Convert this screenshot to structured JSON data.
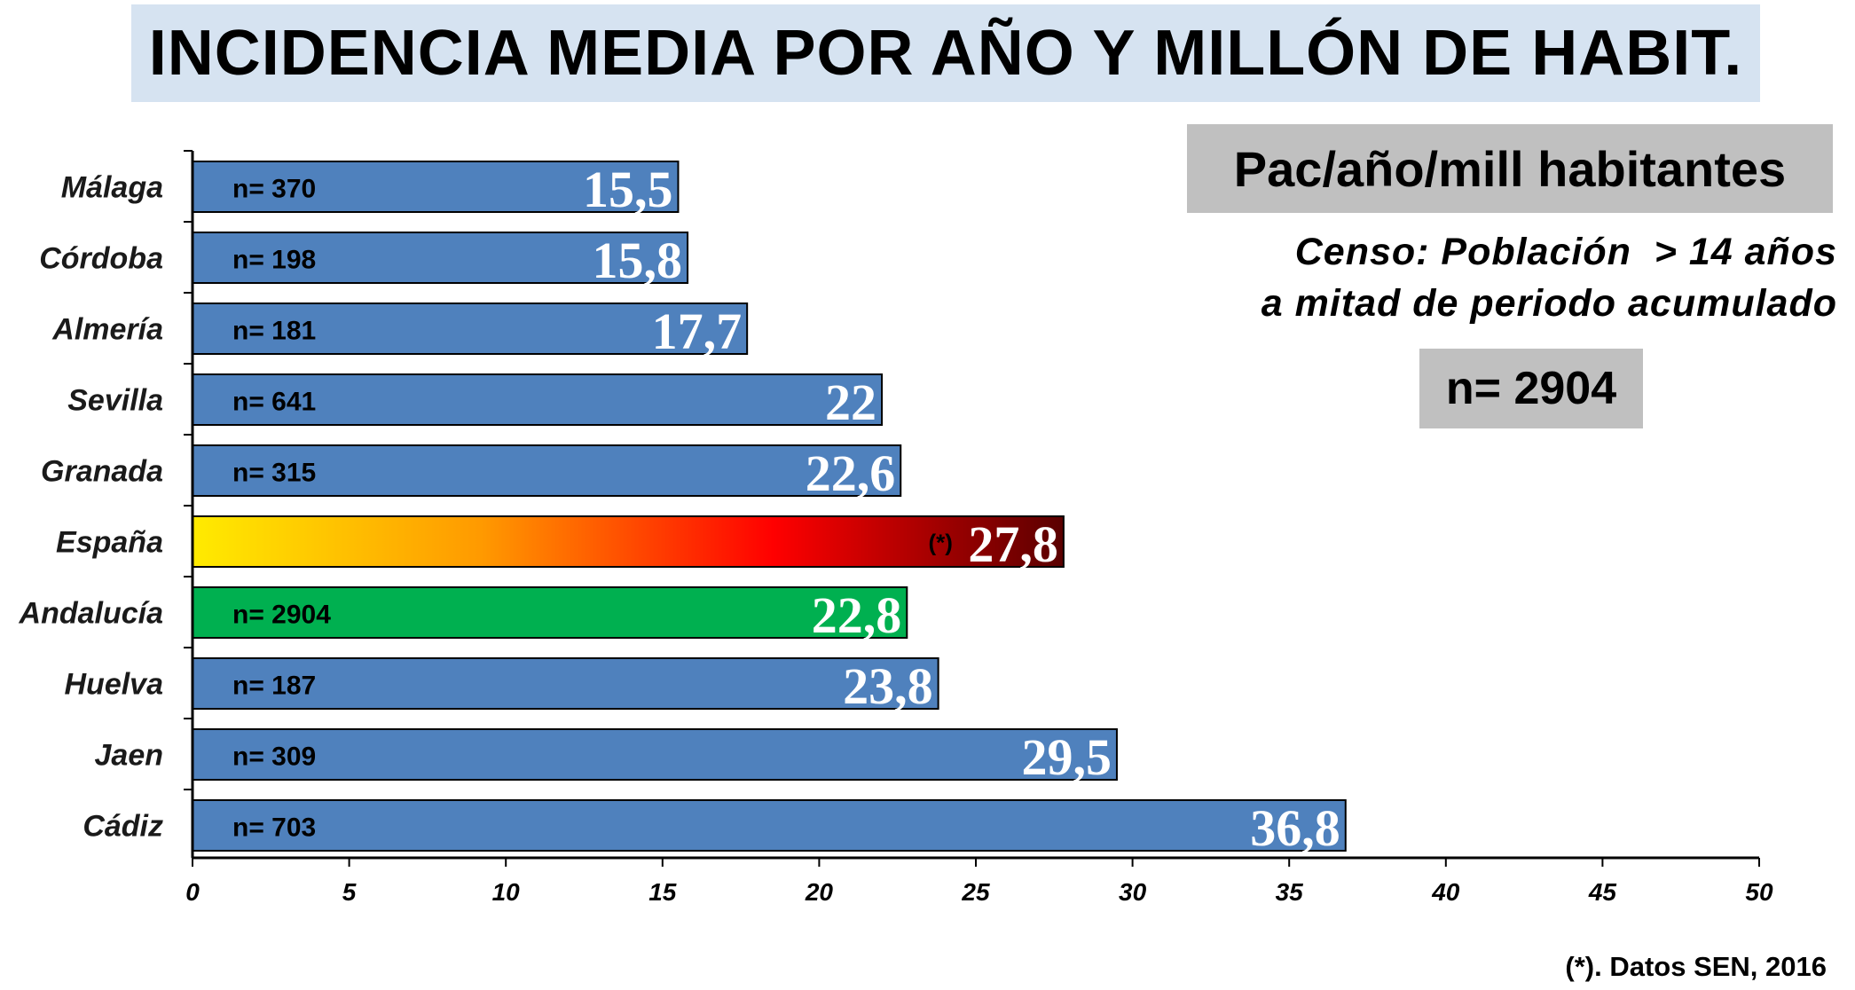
{
  "title": "INCIDENCIA MEDIA POR AÑO Y MILLÓN DE HABIT.",
  "units_box": "Pac/año/mill habitantes",
  "census": {
    "line1": "Censo: Población  > 14 años",
    "line2": "a mitad de periodo acumulado"
  },
  "total_n": "n= 2904",
  "source_note": "(*). Datos SEN, 2016",
  "colors": {
    "bar_default": "#4f81bd",
    "bar_andalucia": "#00b050",
    "bar_espana_gradient": [
      "#ffeb00",
      "#ff9900",
      "#ff0000",
      "#5a0000"
    ]
  },
  "chart_data": {
    "type": "bar",
    "orientation": "horizontal",
    "xlim": [
      0,
      50
    ],
    "xticks": [
      0,
      5,
      10,
      15,
      20,
      25,
      30,
      35,
      40,
      45,
      50
    ],
    "grid": false,
    "categories": [
      "Málaga",
      "Córdoba",
      "Almería",
      "Sevilla",
      "Granada",
      "España",
      "Andalucía",
      "Huelva",
      "Jaen",
      "Cádiz"
    ],
    "values": [
      15.5,
      15.8,
      17.7,
      22,
      22.6,
      27.8,
      22.8,
      23.8,
      29.5,
      36.8
    ],
    "value_labels": [
      "15,5",
      "15,8",
      "17,7",
      "22",
      "22,6",
      "27,8",
      "22,8",
      "23,8",
      "29,5",
      "36,8"
    ],
    "n_labels": [
      "n= 370",
      "n= 198",
      "n= 181",
      "n= 641",
      "n= 315",
      "",
      "n= 2904",
      "n= 187",
      "n= 309",
      "n= 703"
    ],
    "annotations": [
      "",
      "",
      "",
      "",
      "",
      "(*)",
      "",
      "",
      "",
      ""
    ],
    "bar_styles": [
      "default",
      "default",
      "default",
      "default",
      "default",
      "gradient",
      "green",
      "default",
      "default",
      "default"
    ]
  }
}
